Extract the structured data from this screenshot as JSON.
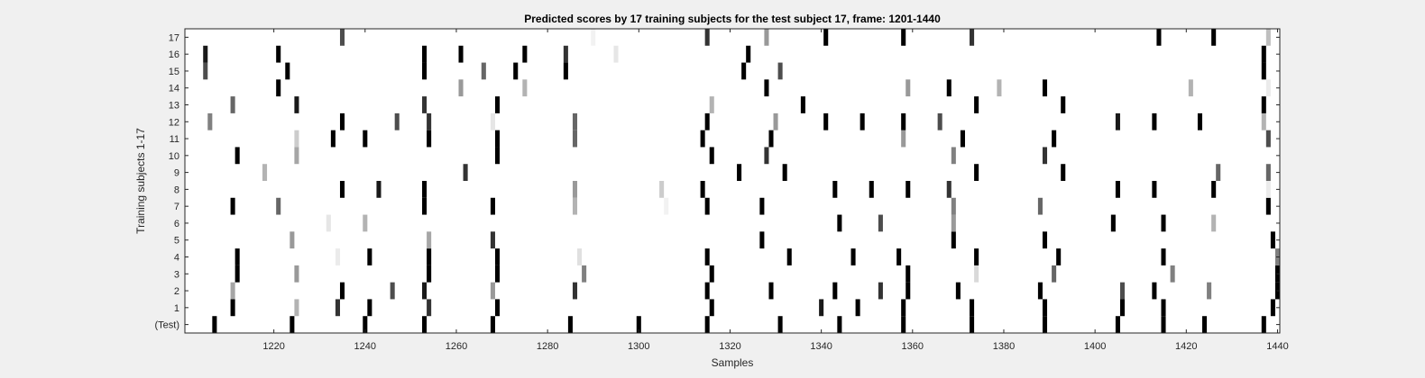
{
  "colors": {
    "figure_background": "#f0f0f0",
    "axes_background": "#ffffff",
    "axes_color": "#262626",
    "colormap": "gray (white = 0, black = 1)"
  },
  "chart_data": {
    "type": "heatmap",
    "title": "Predicted scores by 17 training subjects for the test subject 17, frame: 1201-1440",
    "xlabel": "Samples",
    "ylabel": "Training subjects 1-17",
    "xlim": [
      1201,
      1440
    ],
    "x_ticks": [
      1220,
      1240,
      1260,
      1280,
      1300,
      1320,
      1340,
      1360,
      1380,
      1400,
      1420,
      1440
    ],
    "rows": [
      "(Test)",
      "1",
      "2",
      "3",
      "4",
      "5",
      "6",
      "7",
      "8",
      "9",
      "10",
      "11",
      "12",
      "13",
      "14",
      "15",
      "16",
      "17"
    ],
    "cell_value_note": "each cell is the score at one sample; value in [0,1], higher = darker",
    "marks": {
      "(Test)": [
        [
          1207,
          1
        ],
        [
          1224,
          1
        ],
        [
          1240,
          1
        ],
        [
          1253,
          1
        ],
        [
          1268,
          1
        ],
        [
          1285,
          1
        ],
        [
          1300,
          1
        ],
        [
          1315,
          1
        ],
        [
          1331,
          1
        ],
        [
          1344,
          1
        ],
        [
          1358,
          1
        ],
        [
          1373,
          1
        ],
        [
          1389,
          1
        ],
        [
          1405,
          1
        ],
        [
          1415,
          1
        ],
        [
          1424,
          1
        ],
        [
          1437,
          1
        ]
      ],
      "1": [
        [
          1211,
          1
        ],
        [
          1225,
          0.3
        ],
        [
          1234,
          0.8
        ],
        [
          1241,
          1
        ],
        [
          1254,
          0.8
        ],
        [
          1269,
          1
        ],
        [
          1316,
          1
        ],
        [
          1340,
          0.9
        ],
        [
          1348,
          1
        ],
        [
          1358,
          1
        ],
        [
          1373,
          1
        ],
        [
          1389,
          1
        ],
        [
          1406,
          1
        ],
        [
          1415,
          1
        ],
        [
          1439,
          1
        ]
      ],
      "2": [
        [
          1211,
          0.35
        ],
        [
          1235,
          1
        ],
        [
          1246,
          0.7
        ],
        [
          1253,
          0.9
        ],
        [
          1268,
          0.4
        ],
        [
          1286,
          0.8
        ],
        [
          1315,
          1
        ],
        [
          1329,
          1
        ],
        [
          1343,
          1
        ],
        [
          1353,
          0.8
        ],
        [
          1359,
          1
        ],
        [
          1370,
          1
        ],
        [
          1388,
          1
        ],
        [
          1406,
          0.7
        ],
        [
          1413,
          1
        ],
        [
          1425,
          0.5
        ],
        [
          1440,
          1
        ]
      ],
      "3": [
        [
          1212,
          1
        ],
        [
          1225,
          0.4
        ],
        [
          1254,
          1
        ],
        [
          1269,
          1
        ],
        [
          1288,
          0.5
        ],
        [
          1316,
          1
        ],
        [
          1359,
          1
        ],
        [
          1374,
          0.15
        ],
        [
          1391,
          0.6
        ],
        [
          1417,
          0.5
        ],
        [
          1440,
          1
        ]
      ],
      "4": [
        [
          1212,
          1
        ],
        [
          1234,
          0.08
        ],
        [
          1241,
          1
        ],
        [
          1254,
          1
        ],
        [
          1269,
          1
        ],
        [
          1287,
          0.12
        ],
        [
          1315,
          1
        ],
        [
          1333,
          1
        ],
        [
          1347,
          1
        ],
        [
          1357,
          1
        ],
        [
          1374,
          1
        ],
        [
          1392,
          1
        ],
        [
          1415,
          1
        ],
        [
          1440,
          0.5
        ]
      ],
      "5": [
        [
          1224,
          0.4
        ],
        [
          1254,
          0.35
        ],
        [
          1268,
          0.8
        ],
        [
          1327,
          1
        ],
        [
          1369,
          1
        ],
        [
          1389,
          1
        ],
        [
          1439,
          1
        ]
      ],
      "6": [
        [
          1232,
          0.1
        ],
        [
          1240,
          0.3
        ],
        [
          1344,
          1
        ],
        [
          1353,
          0.7
        ],
        [
          1369,
          0.4
        ],
        [
          1404,
          1
        ],
        [
          1415,
          1
        ],
        [
          1426,
          0.3
        ]
      ],
      "7": [
        [
          1211,
          1
        ],
        [
          1221,
          0.6
        ],
        [
          1253,
          1
        ],
        [
          1268,
          1
        ],
        [
          1286,
          0.3
        ],
        [
          1306,
          0.05
        ],
        [
          1315,
          1
        ],
        [
          1327,
          1
        ],
        [
          1369,
          0.5
        ],
        [
          1388,
          0.6
        ],
        [
          1438,
          1
        ]
      ],
      "8": [
        [
          1235,
          1
        ],
        [
          1243,
          0.9
        ],
        [
          1253,
          1
        ],
        [
          1286,
          0.4
        ],
        [
          1305,
          0.2
        ],
        [
          1314,
          1
        ],
        [
          1343,
          1
        ],
        [
          1351,
          1
        ],
        [
          1359,
          1
        ],
        [
          1368,
          0.8
        ],
        [
          1405,
          1
        ],
        [
          1413,
          1
        ],
        [
          1426,
          1
        ],
        [
          1438,
          0.08
        ]
      ],
      "9": [
        [
          1218,
          0.3
        ],
        [
          1262,
          0.8
        ],
        [
          1322,
          1
        ],
        [
          1332,
          1
        ],
        [
          1374,
          1
        ],
        [
          1393,
          1
        ],
        [
          1427,
          0.6
        ],
        [
          1438,
          0.6
        ]
      ],
      "10": [
        [
          1212,
          1
        ],
        [
          1225,
          0.35
        ],
        [
          1269,
          1
        ],
        [
          1316,
          1
        ],
        [
          1328,
          0.8
        ],
        [
          1369,
          0.5
        ],
        [
          1389,
          0.8
        ],
        [
          1441,
          1
        ]
      ],
      "11": [
        [
          1225,
          0.2
        ],
        [
          1233,
          1
        ],
        [
          1240,
          1
        ],
        [
          1254,
          1
        ],
        [
          1269,
          1
        ],
        [
          1286,
          0.6
        ],
        [
          1314,
          1
        ],
        [
          1329,
          1
        ],
        [
          1358,
          0.4
        ],
        [
          1371,
          1
        ],
        [
          1391,
          1
        ],
        [
          1438,
          0.7
        ]
      ],
      "12": [
        [
          1206,
          0.5
        ],
        [
          1235,
          1
        ],
        [
          1247,
          0.7
        ],
        [
          1254,
          0.8
        ],
        [
          1268,
          0.1
        ],
        [
          1286,
          0.6
        ],
        [
          1315,
          1
        ],
        [
          1330,
          0.4
        ],
        [
          1341,
          1
        ],
        [
          1349,
          1
        ],
        [
          1358,
          1
        ],
        [
          1366,
          0.7
        ],
        [
          1405,
          0.9
        ],
        [
          1413,
          1
        ],
        [
          1423,
          1
        ],
        [
          1437,
          0.3
        ]
      ],
      "13": [
        [
          1211,
          0.6
        ],
        [
          1225,
          0.9
        ],
        [
          1253,
          0.8
        ],
        [
          1269,
          1
        ],
        [
          1316,
          0.3
        ],
        [
          1336,
          1
        ],
        [
          1374,
          1
        ],
        [
          1393,
          1
        ],
        [
          1437,
          1
        ]
      ],
      "14": [
        [
          1221,
          1
        ],
        [
          1261,
          0.4
        ],
        [
          1275,
          0.3
        ],
        [
          1328,
          1
        ],
        [
          1359,
          0.4
        ],
        [
          1368,
          1
        ],
        [
          1379,
          0.3
        ],
        [
          1389,
          1
        ],
        [
          1421,
          0.3
        ],
        [
          1438,
          0.08
        ]
      ],
      "15": [
        [
          1205,
          0.7
        ],
        [
          1223,
          1
        ],
        [
          1253,
          1
        ],
        [
          1266,
          0.6
        ],
        [
          1273,
          1
        ],
        [
          1284,
          1
        ],
        [
          1323,
          1
        ],
        [
          1331,
          0.7
        ],
        [
          1437,
          1
        ]
      ],
      "16": [
        [
          1205,
          0.9
        ],
        [
          1221,
          1
        ],
        [
          1253,
          1
        ],
        [
          1261,
          1
        ],
        [
          1275,
          1
        ],
        [
          1284,
          0.8
        ],
        [
          1295,
          0.1
        ],
        [
          1324,
          1
        ],
        [
          1437,
          1
        ]
      ],
      "17": [
        [
          1235,
          0.7
        ],
        [
          1290,
          0.05
        ],
        [
          1315,
          0.8
        ],
        [
          1328,
          0.4
        ],
        [
          1341,
          1
        ],
        [
          1358,
          1
        ],
        [
          1373,
          0.8
        ],
        [
          1414,
          1
        ],
        [
          1426,
          1
        ],
        [
          1438,
          0.25
        ]
      ]
    }
  }
}
